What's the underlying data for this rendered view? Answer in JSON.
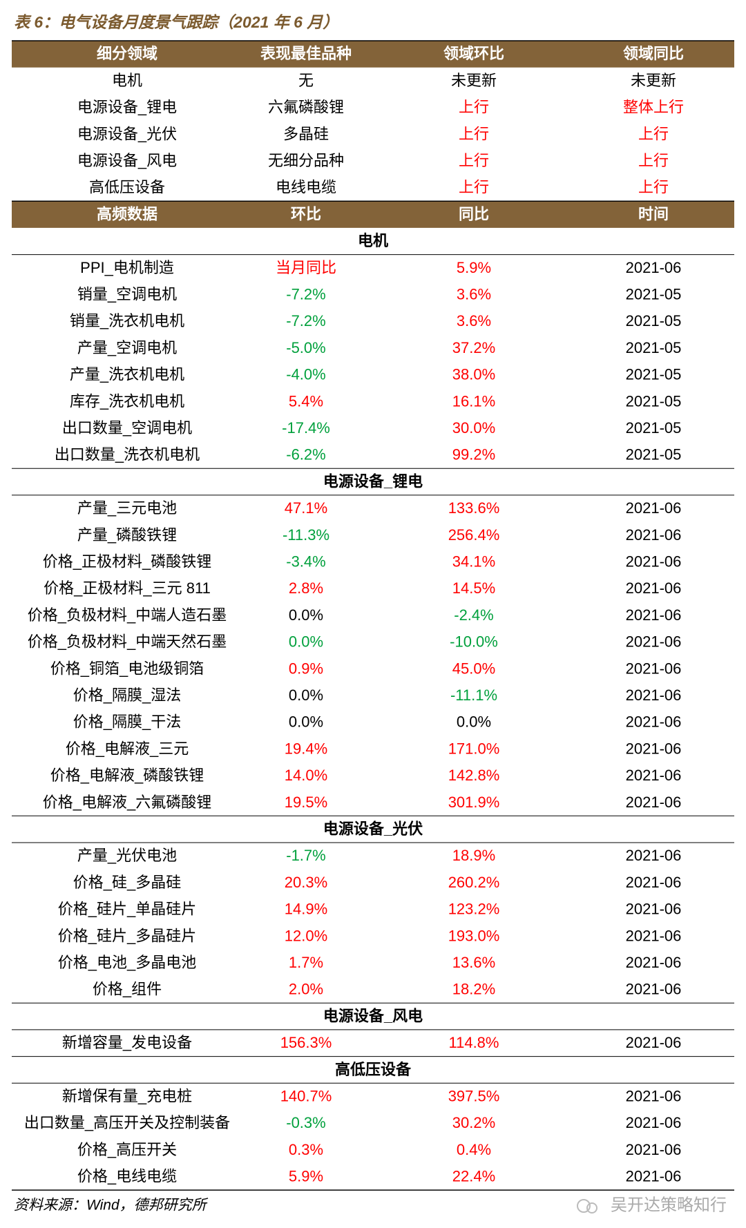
{
  "title": "表 6：电气设备月度景气跟踪（2021 年 6 月）",
  "palette": {
    "k": "#000000",
    "r": "#ff0000",
    "g": "#00a03c"
  },
  "summary": {
    "header": [
      "细分领域",
      "表现最佳品种",
      "领域环比",
      "领域同比"
    ],
    "rows": [
      {
        "cells": [
          "电机",
          "无",
          "未更新",
          "未更新"
        ],
        "colors": "kkkk"
      },
      {
        "cells": [
          "电源设备_锂电",
          "六氟磷酸锂",
          "上行",
          "整体上行"
        ],
        "colors": "kkrr"
      },
      {
        "cells": [
          "电源设备_光伏",
          "多晶硅",
          "上行",
          "上行"
        ],
        "colors": "kkrr"
      },
      {
        "cells": [
          "电源设备_风电",
          "无细分品种",
          "上行",
          "上行"
        ],
        "colors": "kkrr"
      },
      {
        "cells": [
          "高低压设备",
          "电线电缆",
          "上行",
          "上行"
        ],
        "colors": "kkrr"
      }
    ]
  },
  "detail": {
    "header": [
      "高频数据",
      "环比",
      "同比",
      "时间"
    ],
    "sections": [
      {
        "title": "电机",
        "rows": [
          {
            "cells": [
              "PPI_电机制造",
              "当月同比",
              "5.9%",
              "2021-06"
            ],
            "colors": "krrk"
          },
          {
            "cells": [
              "销量_空调电机",
              "-7.2%",
              "3.6%",
              "2021-05"
            ],
            "colors": "kgrk"
          },
          {
            "cells": [
              "销量_洗衣机电机",
              "-7.2%",
              "3.6%",
              "2021-05"
            ],
            "colors": "kgrk"
          },
          {
            "cells": [
              "产量_空调电机",
              "-5.0%",
              "37.2%",
              "2021-05"
            ],
            "colors": "kgrk"
          },
          {
            "cells": [
              "产量_洗衣机电机",
              "-4.0%",
              "38.0%",
              "2021-05"
            ],
            "colors": "kgrk"
          },
          {
            "cells": [
              "库存_洗衣机电机",
              "5.4%",
              "16.1%",
              "2021-05"
            ],
            "colors": "krrk"
          },
          {
            "cells": [
              "出口数量_空调电机",
              "-17.4%",
              "30.0%",
              "2021-05"
            ],
            "colors": "kgrk"
          },
          {
            "cells": [
              "出口数量_洗衣机电机",
              "-6.2%",
              "99.2%",
              "2021-05"
            ],
            "colors": "kgrk"
          }
        ]
      },
      {
        "title": "电源设备_锂电",
        "rows": [
          {
            "cells": [
              "产量_三元电池",
              "47.1%",
              "133.6%",
              "2021-06"
            ],
            "colors": "krrk"
          },
          {
            "cells": [
              "产量_磷酸铁锂",
              "-11.3%",
              "256.4%",
              "2021-06"
            ],
            "colors": "kgrk"
          },
          {
            "cells": [
              "价格_正极材料_磷酸铁锂",
              "-3.4%",
              "34.1%",
              "2021-06"
            ],
            "colors": "kgrk"
          },
          {
            "cells": [
              "价格_正极材料_三元 811",
              "2.8%",
              "14.5%",
              "2021-06"
            ],
            "colors": "krrk"
          },
          {
            "cells": [
              "价格_负极材料_中端人造石墨",
              "0.0%",
              "-2.4%",
              "2021-06"
            ],
            "colors": "kkgk"
          },
          {
            "cells": [
              "价格_负极材料_中端天然石墨",
              "0.0%",
              "-10.0%",
              "2021-06"
            ],
            "colors": "kggk"
          },
          {
            "cells": [
              "价格_铜箔_电池级铜箔",
              "0.9%",
              "45.0%",
              "2021-06"
            ],
            "colors": "krrk"
          },
          {
            "cells": [
              "价格_隔膜_湿法",
              "0.0%",
              "-11.1%",
              "2021-06"
            ],
            "colors": "kkgk"
          },
          {
            "cells": [
              "价格_隔膜_干法",
              "0.0%",
              "0.0%",
              "2021-06"
            ],
            "colors": "kkkk"
          },
          {
            "cells": [
              "价格_电解液_三元",
              "19.4%",
              "171.0%",
              "2021-06"
            ],
            "colors": "krrk"
          },
          {
            "cells": [
              "价格_电解液_磷酸铁锂",
              "14.0%",
              "142.8%",
              "2021-06"
            ],
            "colors": "krrk"
          },
          {
            "cells": [
              "价格_电解液_六氟磷酸锂",
              "19.5%",
              "301.9%",
              "2021-06"
            ],
            "colors": "krrk"
          }
        ]
      },
      {
        "title": "电源设备_光伏",
        "rows": [
          {
            "cells": [
              "产量_光伏电池",
              "-1.7%",
              "18.9%",
              "2021-06"
            ],
            "colors": "kgrk"
          },
          {
            "cells": [
              "价格_硅_多晶硅",
              "20.3%",
              "260.2%",
              "2021-06"
            ],
            "colors": "krrk"
          },
          {
            "cells": [
              "价格_硅片_单晶硅片",
              "14.9%",
              "123.2%",
              "2021-06"
            ],
            "colors": "krrk"
          },
          {
            "cells": [
              "价格_硅片_多晶硅片",
              "12.0%",
              "193.0%",
              "2021-06"
            ],
            "colors": "krrk"
          },
          {
            "cells": [
              "价格_电池_多晶电池",
              "1.7%",
              "13.6%",
              "2021-06"
            ],
            "colors": "krrk"
          },
          {
            "cells": [
              "价格_组件",
              "2.0%",
              "18.2%",
              "2021-06"
            ],
            "colors": "krrk"
          }
        ]
      },
      {
        "title": "电源设备_风电",
        "rows": [
          {
            "cells": [
              "新增容量_发电设备",
              "156.3%",
              "114.8%",
              "2021-06"
            ],
            "colors": "krrk"
          }
        ]
      },
      {
        "title": "高低压设备",
        "rows": [
          {
            "cells": [
              "新增保有量_充电桩",
              "140.7%",
              "397.5%",
              "2021-06"
            ],
            "colors": "krrk"
          },
          {
            "cells": [
              "出口数量_高压开关及控制装备",
              "-0.3%",
              "30.2%",
              "2021-06"
            ],
            "colors": "kgrk"
          },
          {
            "cells": [
              "价格_高压开关",
              "0.3%",
              "0.4%",
              "2021-06"
            ],
            "colors": "krrk"
          },
          {
            "cells": [
              "价格_电线电缆",
              "5.9%",
              "22.4%",
              "2021-06"
            ],
            "colors": "krrk"
          }
        ]
      }
    ]
  },
  "source": "资料来源：Wind，德邦研究所",
  "watermark": "吴开达策略知行"
}
